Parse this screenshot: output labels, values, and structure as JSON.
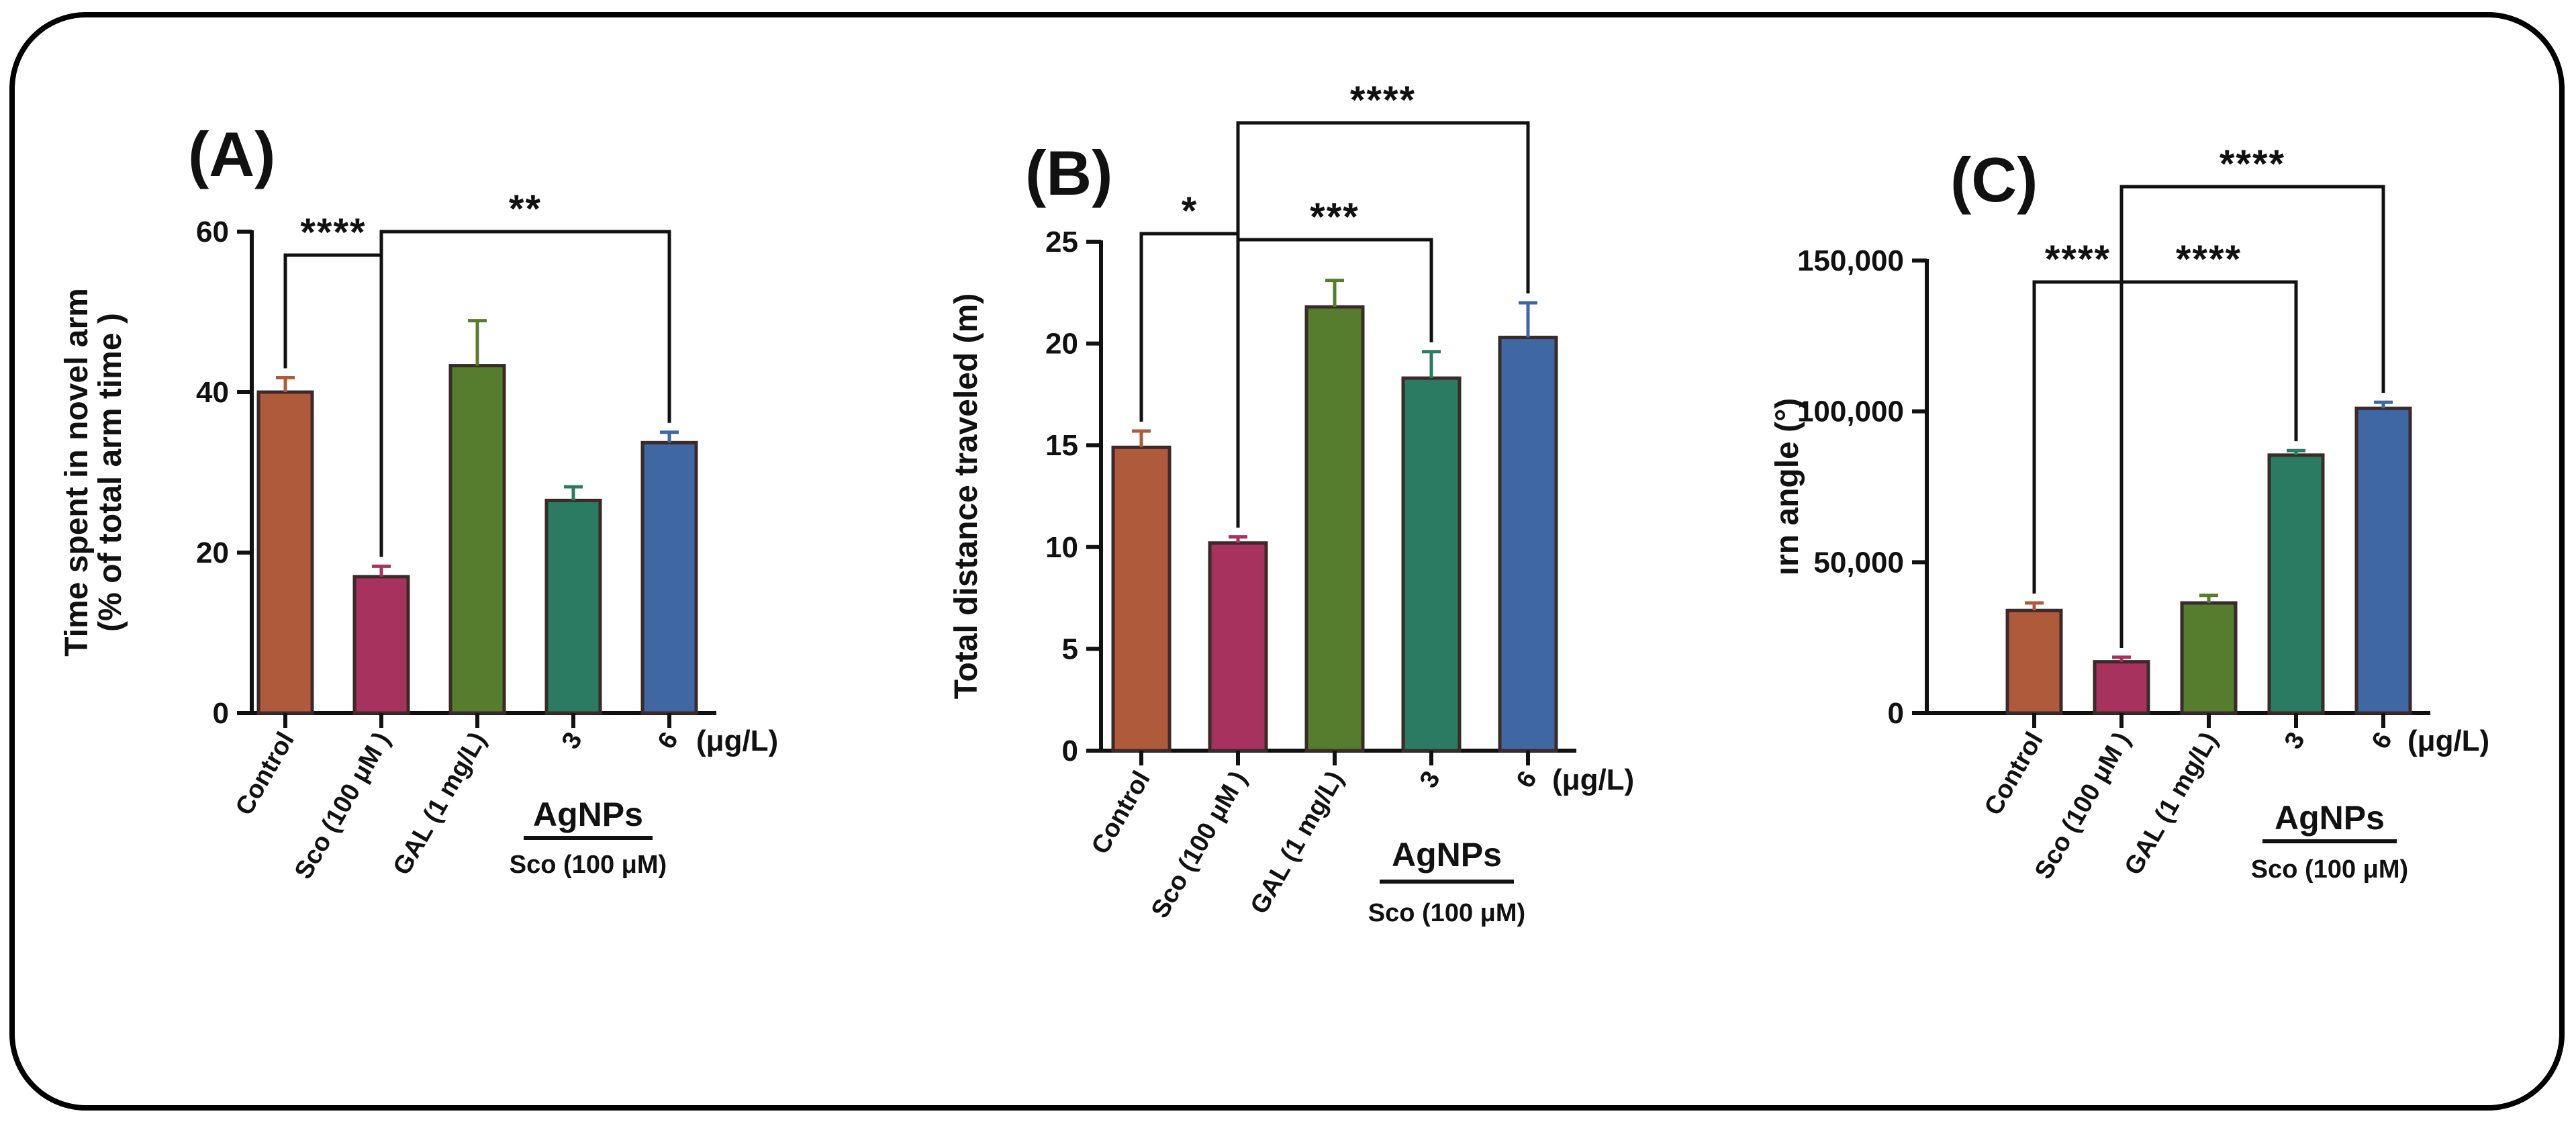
{
  "chart_data": [
    {
      "type": "bar",
      "panel": "(A)",
      "ylabel_line1": "Time spent in novel arm",
      "ylabel_line2": "(% of total arm time )",
      "ylim": [
        0,
        60
      ],
      "yticks": [
        0,
        20,
        40,
        60
      ],
      "categories": [
        "Control",
        "Sco (100 μM )",
        "GAL (1 mg/L)",
        "3",
        "6"
      ],
      "values": [
        40,
        17,
        43.3,
        26.5,
        33.7
      ],
      "errors": [
        1.8,
        1.3,
        5.6,
        1.7,
        1.3
      ],
      "colors": [
        "#b05a3c",
        "#a8325e",
        "#567d2d",
        "#2a7b62",
        "#3f67a3"
      ],
      "unit_label": "(μg/L)",
      "group_label": "AgNPs",
      "group_sublabel": "Sco (100 μM)",
      "significance": [
        {
          "from": 0,
          "to": 1,
          "label": "****"
        },
        {
          "from": 1,
          "to": 4,
          "label": "**"
        }
      ]
    },
    {
      "type": "bar",
      "panel": "(B)",
      "ylabel_line1": "Total distance traveled (m)",
      "ylim": [
        0,
        25
      ],
      "yticks": [
        0,
        5,
        10,
        15,
        20,
        25
      ],
      "categories": [
        "Control",
        "Sco (100 μM )",
        "GAL (1 mg/L)",
        "3",
        "6"
      ],
      "values": [
        14.9,
        10.2,
        21.8,
        18.3,
        20.3
      ],
      "errors": [
        0.8,
        0.3,
        1.3,
        1.3,
        1.7
      ],
      "colors": [
        "#b05a3c",
        "#a8325e",
        "#567d2d",
        "#2a7b62",
        "#3f67a3"
      ],
      "unit_label": "(μg/L)",
      "group_label": "AgNPs",
      "group_sublabel": "Sco (100 μM)",
      "significance": [
        {
          "from": 0,
          "to": 1,
          "label": "*"
        },
        {
          "from": 1,
          "to": 3,
          "label": "***"
        },
        {
          "from": 1,
          "to": 4,
          "label": "****"
        }
      ]
    },
    {
      "type": "bar",
      "panel": "(C)",
      "ylabel_line1": "ırn angle (°)",
      "ylim": [
        0,
        150000
      ],
      "yticks": [
        0,
        50000,
        100000,
        150000
      ],
      "ytick_labels": [
        "0",
        "50,000",
        "100,000",
        "150,000"
      ],
      "categories": [
        "Control",
        "Sco (100 μM )",
        "GAL (1 mg/L)",
        "3",
        "6"
      ],
      "values": [
        34000,
        17000,
        36500,
        85500,
        101000
      ],
      "errors": [
        2500,
        1500,
        2500,
        1500,
        2000
      ],
      "colors": [
        "#b05a3c",
        "#a8325e",
        "#567d2d",
        "#2a7b62",
        "#3f67a3"
      ],
      "unit_label": "(μg/L)",
      "group_label": "AgNPs",
      "group_sublabel": "Sco (100 μM)",
      "significance": [
        {
          "from": 0,
          "to": 1,
          "label": "****"
        },
        {
          "from": 1,
          "to": 3,
          "label": "****"
        },
        {
          "from": 1,
          "to": 4,
          "label": "****"
        }
      ]
    }
  ]
}
